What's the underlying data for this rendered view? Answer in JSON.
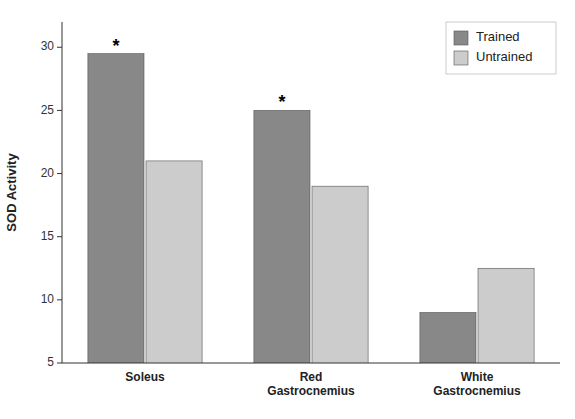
{
  "chart_data": {
    "type": "bar",
    "categories": [
      "Soleus",
      "Red\nGastrocnemius",
      "White\nGastrocnemius"
    ],
    "series": [
      {
        "name": "Trained",
        "color": "#888888",
        "values": [
          29.5,
          25.0,
          9.0
        ]
      },
      {
        "name": "Untrained",
        "color": "#cccccc",
        "values": [
          21.0,
          19.0,
          12.5
        ]
      }
    ],
    "y_label": "SOD Activity",
    "ylim": [
      5,
      32
    ],
    "yticks": [
      5,
      10,
      15,
      20,
      25,
      30
    ],
    "legend": "upper right",
    "grid": false,
    "annotations": [
      {
        "text": "*",
        "category": "Soleus",
        "series": "Trained"
      },
      {
        "text": "*",
        "category": "Red\nGastrocnemius",
        "series": "Trained"
      }
    ]
  }
}
